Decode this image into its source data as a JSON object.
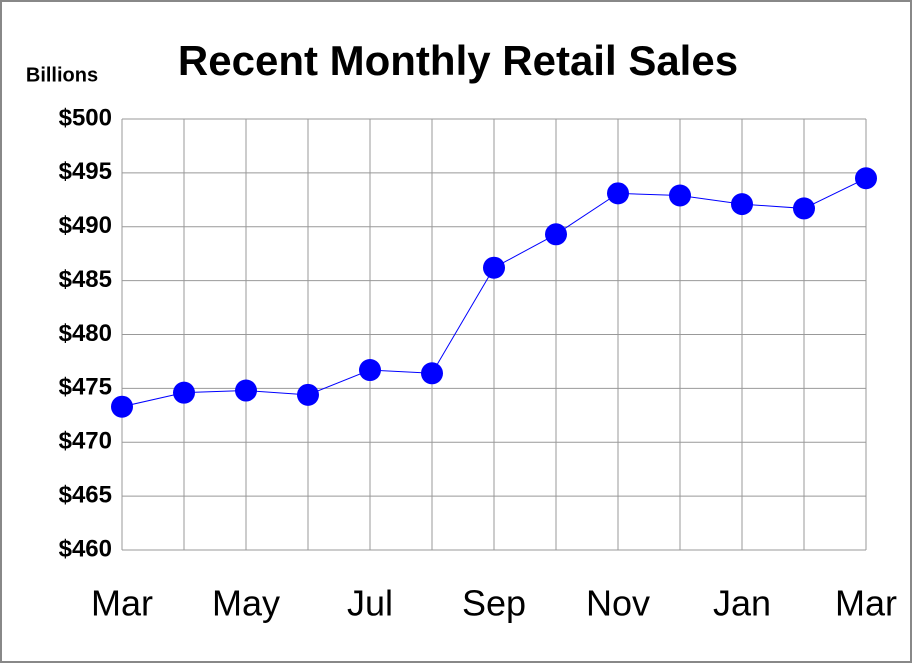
{
  "chart_data": {
    "type": "line",
    "title": "Recent Monthly Retail Sales",
    "y_label": "Billions",
    "categories": [
      "Mar",
      null,
      "May",
      null,
      "Jul",
      null,
      "Sep",
      null,
      "Nov",
      null,
      "Jan",
      null,
      "Mar"
    ],
    "values": [
      473.3,
      474.6,
      474.8,
      474.4,
      476.7,
      476.4,
      486.2,
      489.3,
      493.1,
      492.9,
      492.1,
      491.7,
      494.5
    ],
    "color": "#0000ff",
    "ylim": [
      460,
      500
    ],
    "yticks": [
      {
        "value": 460,
        "label": "$460"
      },
      {
        "value": 465,
        "label": "$465"
      },
      {
        "value": 470,
        "label": "$470"
      },
      {
        "value": 475,
        "label": "$475"
      },
      {
        "value": 480,
        "label": "$480"
      },
      {
        "value": 485,
        "label": "$485"
      },
      {
        "value": 490,
        "label": "$490"
      },
      {
        "value": 495,
        "label": "$495"
      },
      {
        "value": 500,
        "label": "$500"
      }
    ],
    "grid": true
  }
}
